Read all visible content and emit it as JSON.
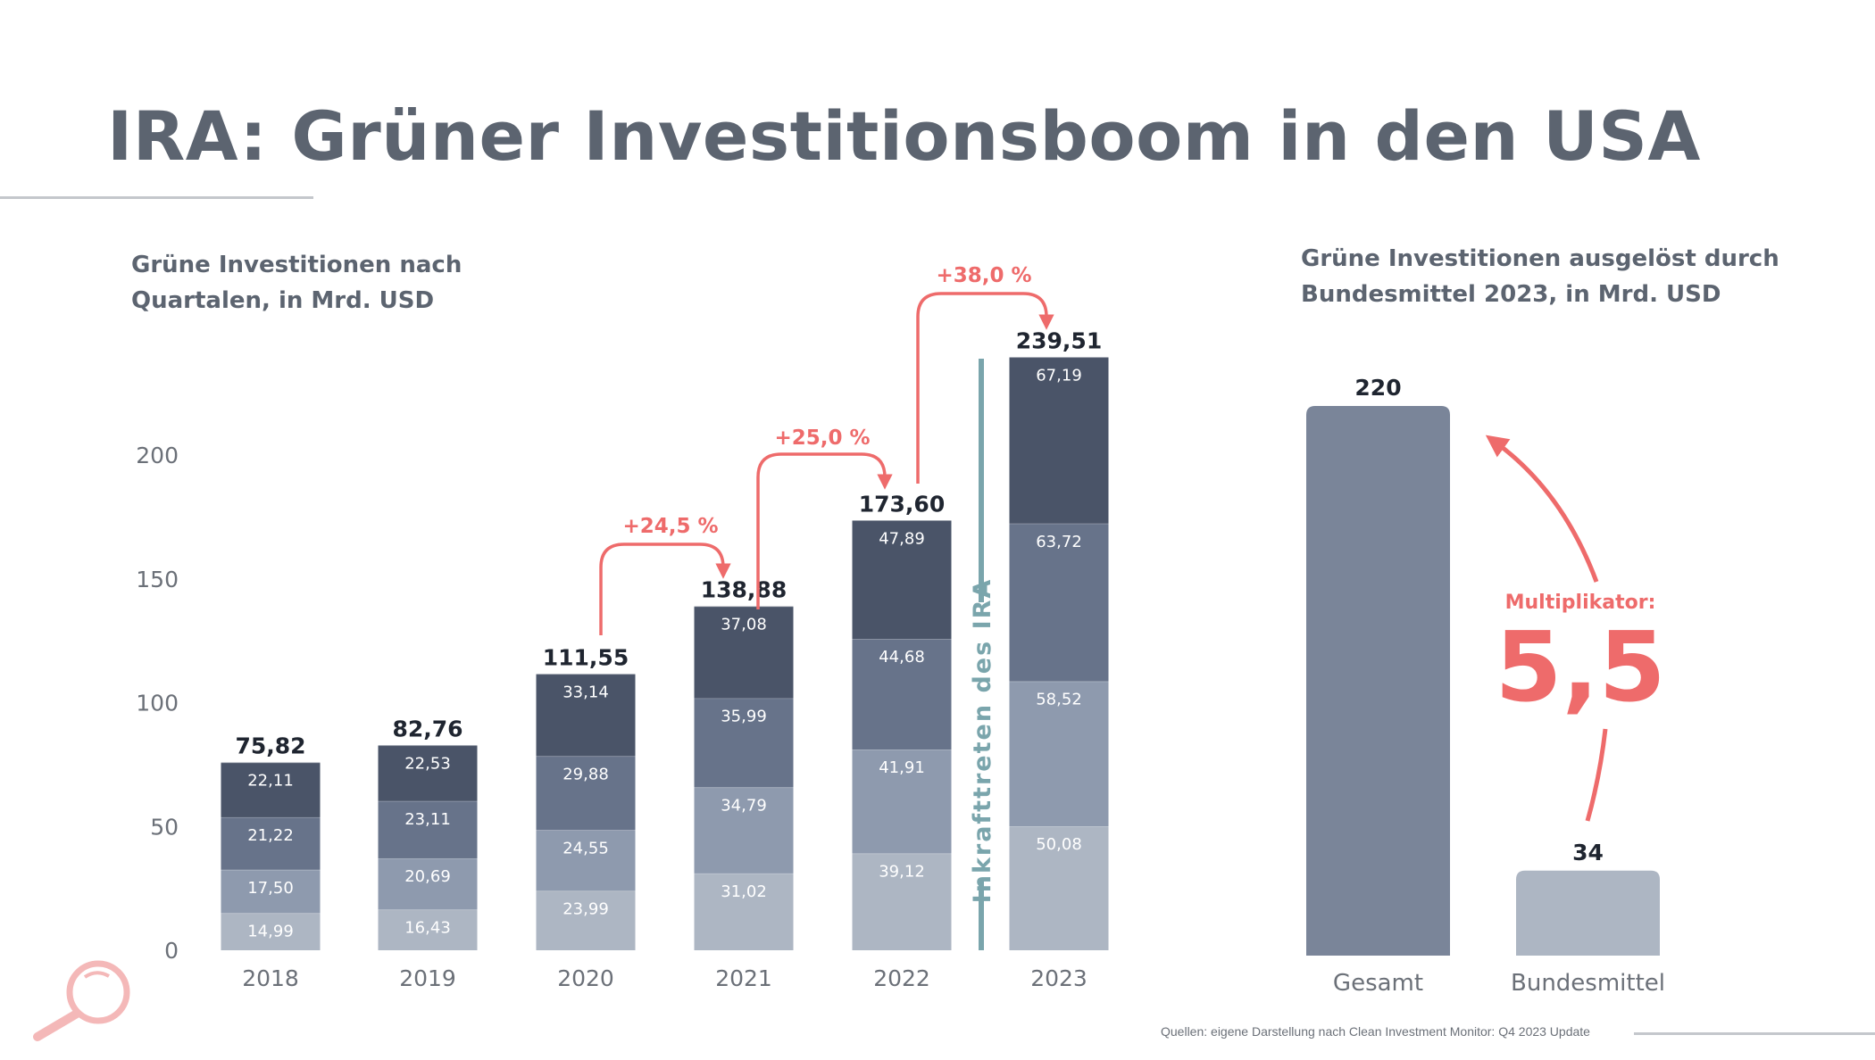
{
  "title": "IRA: Grüner Investitionsboom in den USA",
  "source": "Quellen: eigene Darstellung nach Clean Investment Monitor: Q4 2023 Update",
  "colors": {
    "seg1": "#adb6c3",
    "seg2": "#8e9aae",
    "seg3": "#67738a",
    "seg4": "#4a5468",
    "accent": "#ee6b6b",
    "ira": "#7aa5ac",
    "gesamt": "#7a8599",
    "bundesmittel": "#adb6c3",
    "icon": "#f4b8b8"
  },
  "icons": {
    "logo": "magnifier-icon"
  },
  "chart_data": [
    {
      "type": "bar",
      "stacked": true,
      "title": "Grüne Investitionen nach Quartalen, in Mrd. USD",
      "title_lines": [
        "Grüne Investitionen nach",
        "Quartalen, in Mrd. USD"
      ],
      "categories": [
        "2018",
        "2019",
        "2020",
        "2021",
        "2022",
        "2023"
      ],
      "series": [
        {
          "values": [
            14.99,
            16.43,
            23.99,
            31.02,
            39.12,
            50.08
          ],
          "labels": [
            "14,99",
            "16,43",
            "23,99",
            "31,02",
            "39,12",
            "50,08"
          ]
        },
        {
          "values": [
            17.5,
            20.69,
            24.55,
            34.79,
            41.91,
            58.52
          ],
          "labels": [
            "17,50",
            "20,69",
            "24,55",
            "34,79",
            "41,91",
            "58,52"
          ]
        },
        {
          "values": [
            21.22,
            23.11,
            29.88,
            35.99,
            44.68,
            63.72
          ],
          "labels": [
            "21,22",
            "23,11",
            "29,88",
            "35,99",
            "44,68",
            "63,72"
          ]
        },
        {
          "values": [
            22.11,
            22.53,
            33.14,
            37.08,
            47.89,
            67.19
          ],
          "labels": [
            "22,11",
            "22,53",
            "33,14",
            "37,08",
            "47,89",
            "67,19"
          ]
        }
      ],
      "totals": [
        75.82,
        82.76,
        111.55,
        138.88,
        173.6,
        239.51
      ],
      "total_labels": [
        "75,82",
        "82,76",
        "111,55",
        "138,88",
        "173,60",
        "239,51"
      ],
      "yticks": [
        0,
        50,
        100,
        150,
        200
      ],
      "ytick_labels": [
        "0",
        "50",
        "100",
        "150",
        "200"
      ],
      "ylim": [
        0,
        240
      ],
      "grid": false,
      "annotations": {
        "growth": [
          {
            "from": "2020",
            "to": "2021",
            "label": "+24,5  %"
          },
          {
            "from": "2021",
            "to": "2022",
            "label": "+25,0 %"
          },
          {
            "from": "2022",
            "to": "2023",
            "label": "+38,0 %"
          }
        ],
        "marker": {
          "between": [
            "2022",
            "2023"
          ],
          "label": "Inkrafttreten des IRA"
        }
      }
    },
    {
      "type": "bar",
      "title": "Grüne Investitionen ausgelöst durch Bundesmittel 2023, in Mrd. USD",
      "title_lines": [
        "Grüne Investitionen ausgelöst durch",
        "Bundesmittel 2023, in Mrd. USD"
      ],
      "categories": [
        "Gesamt",
        "Bundesmittel"
      ],
      "values": [
        220,
        34
      ],
      "value_labels": [
        "220",
        "34"
      ],
      "annotation": {
        "label": "Multiplikator:",
        "value": "5,5"
      }
    }
  ]
}
